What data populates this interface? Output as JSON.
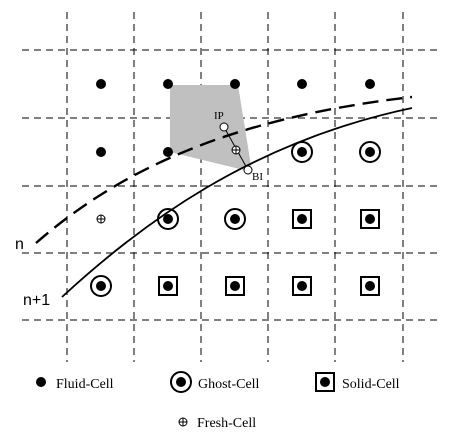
{
  "labels": {
    "curve_n": "n",
    "curve_n1": "n+1",
    "ip": "IP",
    "bi": "BI"
  },
  "legend": {
    "fluid": "Fluid-Cell",
    "ghost": "Ghost-Cell",
    "solid": "Solid-Cell",
    "fresh": "Fresh-Cell"
  },
  "colors": {
    "stencil": "#c0c0c0",
    "line": "#000000",
    "grid": "#000000"
  },
  "cells": {
    "fluid": [
      [
        1,
        1
      ],
      [
        2,
        1
      ],
      [
        3,
        1
      ],
      [
        4,
        1
      ],
      [
        5,
        1
      ],
      [
        1,
        2
      ],
      [
        2,
        2
      ]
    ],
    "ghost": [
      [
        4,
        2
      ],
      [
        5,
        2
      ],
      [
        2,
        3
      ],
      [
        3,
        3
      ],
      [
        1,
        4
      ]
    ],
    "solid": [
      [
        4,
        3
      ],
      [
        5,
        3
      ],
      [
        2,
        4
      ],
      [
        3,
        4
      ],
      [
        4,
        4
      ],
      [
        5,
        4
      ]
    ],
    "fresh": [
      [
        1,
        3
      ]
    ]
  }
}
